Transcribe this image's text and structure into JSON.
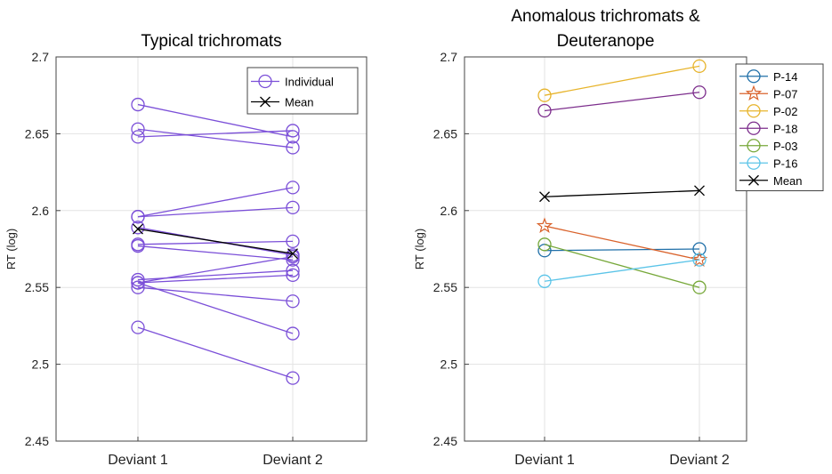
{
  "chart_data": [
    {
      "type": "line",
      "title": "Typical trichromats",
      "xlabel": "",
      "ylabel": "RT (log)",
      "categories": [
        "Deviant  1",
        "Deviant  2"
      ],
      "ylim": [
        2.45,
        2.7
      ],
      "yticks": [
        "2.45",
        "2.5",
        "2.55",
        "2.6",
        "2.65",
        "2.7"
      ],
      "grid": true,
      "legend_position": "top-right",
      "legend": [
        {
          "label": "Individual",
          "color": "#7b4fd8",
          "marker": "circle"
        },
        {
          "label": "Mean",
          "color": "#000000",
          "marker": "x"
        }
      ],
      "series": [
        {
          "name": "Individual",
          "values": [
            2.669,
            2.648
          ]
        },
        {
          "name": "Individual",
          "values": [
            2.653,
            2.641
          ]
        },
        {
          "name": "Individual",
          "values": [
            2.648,
            2.652
          ]
        },
        {
          "name": "Individual",
          "values": [
            2.596,
            2.615
          ]
        },
        {
          "name": "Individual",
          "values": [
            2.596,
            2.602
          ]
        },
        {
          "name": "Individual",
          "values": [
            2.589,
            2.571
          ]
        },
        {
          "name": "Individual",
          "values": [
            2.578,
            2.58
          ]
        },
        {
          "name": "Individual",
          "values": [
            2.577,
            2.568
          ]
        },
        {
          "name": "Individual",
          "values": [
            2.555,
            2.561
          ]
        },
        {
          "name": "Individual",
          "values": [
            2.553,
            2.558
          ]
        },
        {
          "name": "Individual",
          "values": [
            2.553,
            2.57
          ]
        },
        {
          "name": "Individual",
          "values": [
            2.55,
            2.541
          ]
        },
        {
          "name": "Individual",
          "values": [
            2.553,
            2.52
          ]
        },
        {
          "name": "Individual",
          "values": [
            2.524,
            2.491
          ]
        },
        {
          "name": "Mean",
          "values": [
            2.588,
            2.572
          ]
        }
      ]
    },
    {
      "type": "line",
      "title": "Anomalous  trichromats &\nDeuteranope",
      "title_lines": [
        "Anomalous  trichromats &",
        "Deuteranope"
      ],
      "xlabel": "",
      "ylabel": "RT (log)",
      "categories": [
        "Deviant  1",
        "Deviant  2"
      ],
      "ylim": [
        2.45,
        2.7
      ],
      "yticks": [
        "2.45",
        "2.5",
        "2.55",
        "2.6",
        "2.65",
        "2.7"
      ],
      "grid": true,
      "legend_position": "top-right",
      "series": [
        {
          "name": "P-14",
          "color": "#1f6fa8",
          "marker": "circle",
          "values": [
            2.574,
            2.575
          ]
        },
        {
          "name": "P-07",
          "color": "#d9622b",
          "marker": "star",
          "values": [
            2.59,
            2.568
          ]
        },
        {
          "name": "P-02",
          "color": "#e7b42c",
          "marker": "circle",
          "values": [
            2.675,
            2.694
          ]
        },
        {
          "name": "P-18",
          "color": "#7c2d8c",
          "marker": "circle",
          "values": [
            2.665,
            2.677
          ]
        },
        {
          "name": "P-03",
          "color": "#77a83a",
          "marker": "circle",
          "values": [
            2.578,
            2.55
          ]
        },
        {
          "name": "P-16",
          "color": "#5bc4e8",
          "marker": "circle",
          "values": [
            2.554,
            2.568
          ]
        },
        {
          "name": "Mean",
          "color": "#000000",
          "marker": "x",
          "values": [
            2.609,
            2.613
          ]
        }
      ]
    }
  ]
}
